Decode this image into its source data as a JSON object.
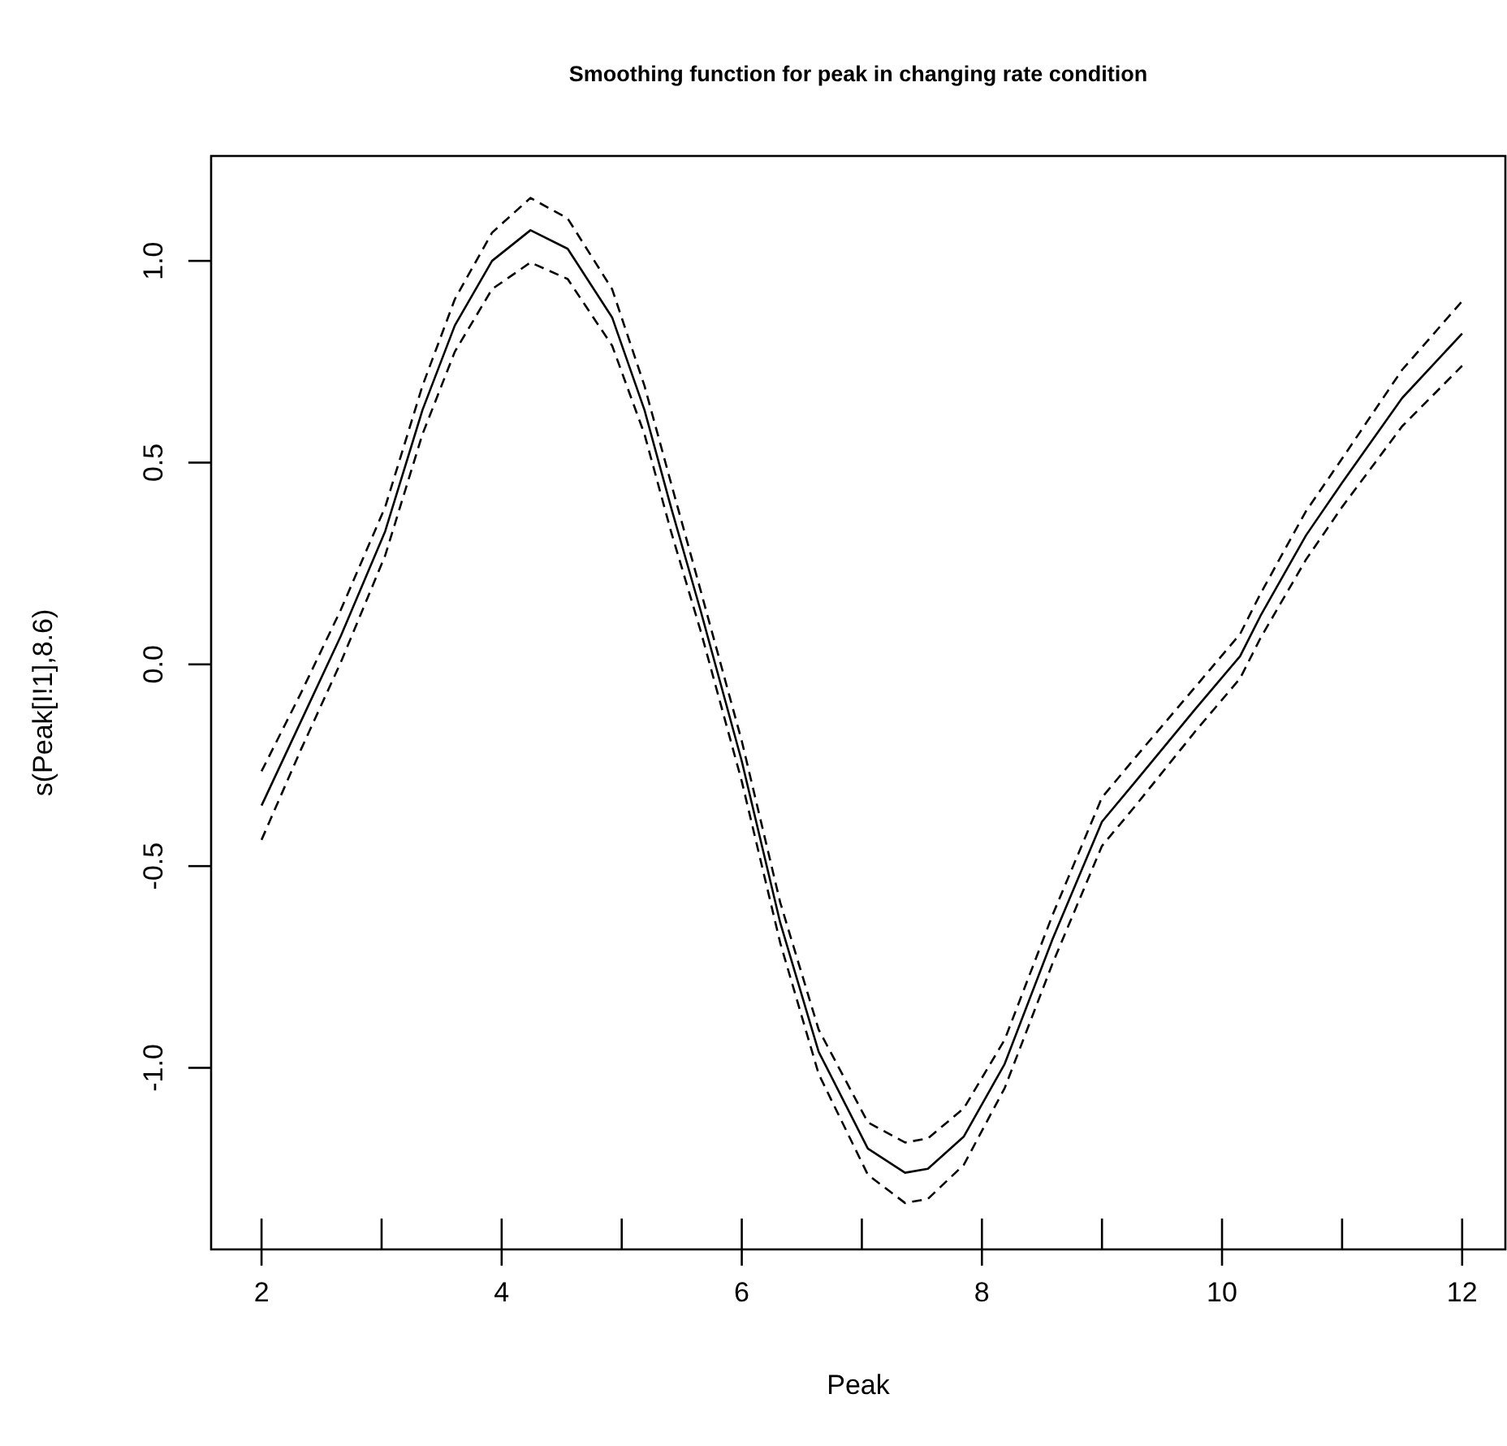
{
  "chart_data": {
    "type": "line",
    "title": "Smoothing function for peak in changing rate condition",
    "xlabel": "Peak",
    "ylabel": "s(Peak[I!1],8.6)",
    "xlim": [
      1.58,
      12.36
    ],
    "ylim": [
      -1.45,
      1.26
    ],
    "xticks": [
      2,
      4,
      6,
      8,
      10,
      12
    ],
    "yticks": [
      {
        "value": -1,
        "label": "-1.0"
      },
      -0.5,
      {
        "value": 0,
        "label": "0.0"
      },
      0.5,
      {
        "value": 1,
        "label": "1.0"
      }
    ],
    "grid": false,
    "marker": "none",
    "x": [
      2.0,
      2.33,
      2.66,
      3.03,
      3.34,
      3.61,
      3.92,
      4.24,
      4.55,
      4.92,
      5.19,
      5.41,
      5.66,
      6.0,
      6.32,
      6.64,
      7.05,
      7.36,
      7.55,
      7.85,
      8.19,
      8.59,
      9.0,
      9.28,
      9.78,
      10.15,
      10.32,
      10.7,
      11.0,
      11.5,
      12.0
    ],
    "series": [
      {
        "color": "#000000",
        "line_style": "solid",
        "values": [
          -0.35,
          -0.14,
          0.07,
          0.33,
          0.63,
          0.84,
          1.0,
          1.076,
          1.03,
          0.86,
          0.63,
          0.39,
          0.13,
          -0.24,
          -0.64,
          -0.96,
          -1.2,
          -1.26,
          -1.25,
          -1.17,
          -0.99,
          -0.68,
          -0.39,
          -0.29,
          -0.11,
          0.02,
          0.12,
          0.32,
          0.45,
          0.66,
          0.82
        ]
      },
      {
        "color": "#000000",
        "line_style": "dashed",
        "values": [
          -0.265,
          -0.07,
          0.135,
          0.39,
          0.69,
          0.905,
          1.07,
          1.156,
          1.105,
          0.93,
          0.69,
          0.45,
          0.18,
          -0.19,
          -0.59,
          -0.905,
          -1.135,
          -1.185,
          -1.175,
          -1.1,
          -0.93,
          -0.62,
          -0.33,
          -0.23,
          -0.055,
          0.075,
          0.175,
          0.38,
          0.51,
          0.73,
          0.9
        ]
      },
      {
        "color": "#000000",
        "line_style": "dashed",
        "values": [
          -0.435,
          -0.21,
          0.005,
          0.27,
          0.57,
          0.775,
          0.93,
          0.996,
          0.955,
          0.79,
          0.57,
          0.33,
          0.08,
          -0.29,
          -0.69,
          -1.015,
          -1.265,
          -1.335,
          -1.325,
          -1.24,
          -1.05,
          -0.74,
          -0.45,
          -0.35,
          -0.165,
          -0.035,
          0.065,
          0.26,
          0.39,
          0.59,
          0.74
        ]
      }
    ]
  }
}
